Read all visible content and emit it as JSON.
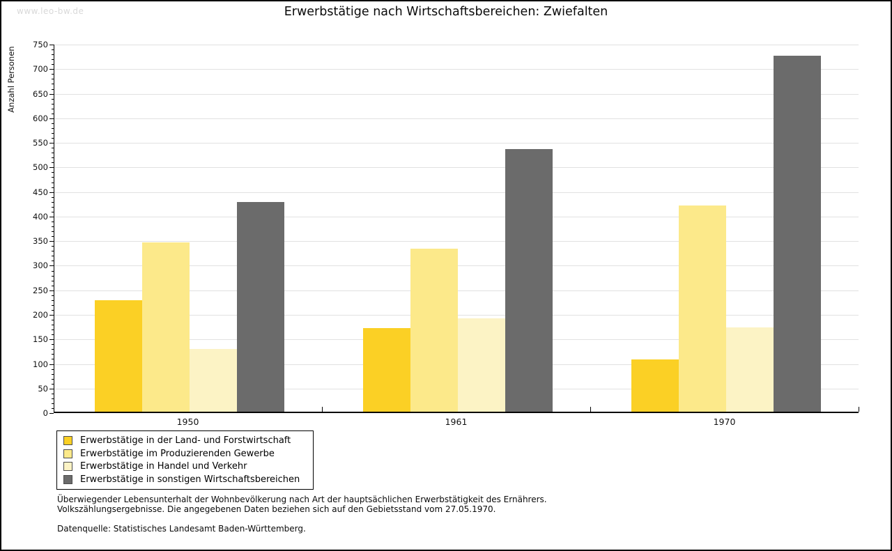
{
  "watermark": "www.leo-bw.de",
  "header": {
    "title": "Erwerbstätige nach Wirtschaftsbereichen: Zwiefalten"
  },
  "chart_data": {
    "type": "bar",
    "title": "Erwerbstätige nach Wirtschaftsbereichen: Zwiefalten",
    "xlabel": "",
    "ylabel": "Anzahl Personen",
    "categories": [
      "1950",
      "1961",
      "1970"
    ],
    "series": [
      {
        "name": "Erwerbstätige in der Land- und Forstwirtschaft",
        "color": "#FBD025",
        "values": [
          227,
          170,
          106
        ]
      },
      {
        "name": "Erwerbstätige im Produzierenden Gewerbe",
        "color": "#FCE98A",
        "values": [
          345,
          332,
          420
        ]
      },
      {
        "name": "Erwerbstätige in Handel und Verkehr",
        "color": "#FCF3C5",
        "values": [
          128,
          190,
          171
        ]
      },
      {
        "name": "Erwerbstätige in sonstigen Wirtschaftsbereichen",
        "color": "#6B6B6B",
        "values": [
          427,
          534,
          724
        ]
      }
    ],
    "ylim": [
      0,
      750
    ],
    "ytick_major": 50,
    "ytick_minor": 10,
    "grid": "horizontal-major",
    "legend_position": "bottom-left"
  },
  "footnotes": {
    "line1": "Überwiegender Lebensunterhalt der Wohnbevölkerung nach Art der hauptsächlichen Erwerbstätigkeit des Ernährers.",
    "line2": "Volkszählungsergebnisse. Die angegebenen Daten beziehen sich auf den Gebietsstand vom 27.05.1970.",
    "source": "Datenquelle: Statistisches Landesamt Baden-Württemberg."
  },
  "colors": {
    "gridline": "#e1e1e1",
    "axis": "#000000",
    "watermark": "#d9d9d9"
  }
}
